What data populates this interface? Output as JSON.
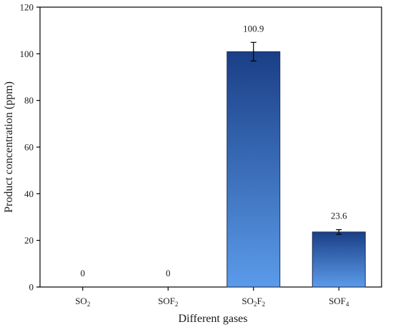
{
  "chart_data": {
    "type": "bar",
    "xlabel": "Different gases",
    "ylabel": "Product concentration (ppm)",
    "ylim": [
      0,
      120
    ],
    "yticks": [
      0,
      20,
      40,
      60,
      80,
      100,
      120
    ],
    "grid": false,
    "categories": [
      {
        "name": "SO2",
        "base": "SO",
        "parts": [
          {
            "t": "SO"
          },
          {
            "t": "2",
            "sub": true
          }
        ]
      },
      {
        "name": "SOF2",
        "base": "SOF",
        "parts": [
          {
            "t": "SOF"
          },
          {
            "t": "2",
            "sub": true
          }
        ]
      },
      {
        "name": "SO2F2",
        "base": "SO2F2",
        "parts": [
          {
            "t": "SO"
          },
          {
            "t": "2",
            "sub": true
          },
          {
            "t": "F"
          },
          {
            "t": "2",
            "sub": true
          }
        ]
      },
      {
        "name": "SOF4",
        "base": "SOF",
        "parts": [
          {
            "t": "SOF"
          },
          {
            "t": "4",
            "sub": true
          }
        ]
      }
    ],
    "values": [
      0,
      0,
      100.9,
      23.6
    ],
    "value_labels": [
      "0",
      "0",
      "100.9",
      "23.6"
    ],
    "errors": [
      0,
      0,
      4.0,
      1.0
    ],
    "bar_gradient": {
      "top": "#1a3f86",
      "bottom": "#5b9bea"
    }
  }
}
